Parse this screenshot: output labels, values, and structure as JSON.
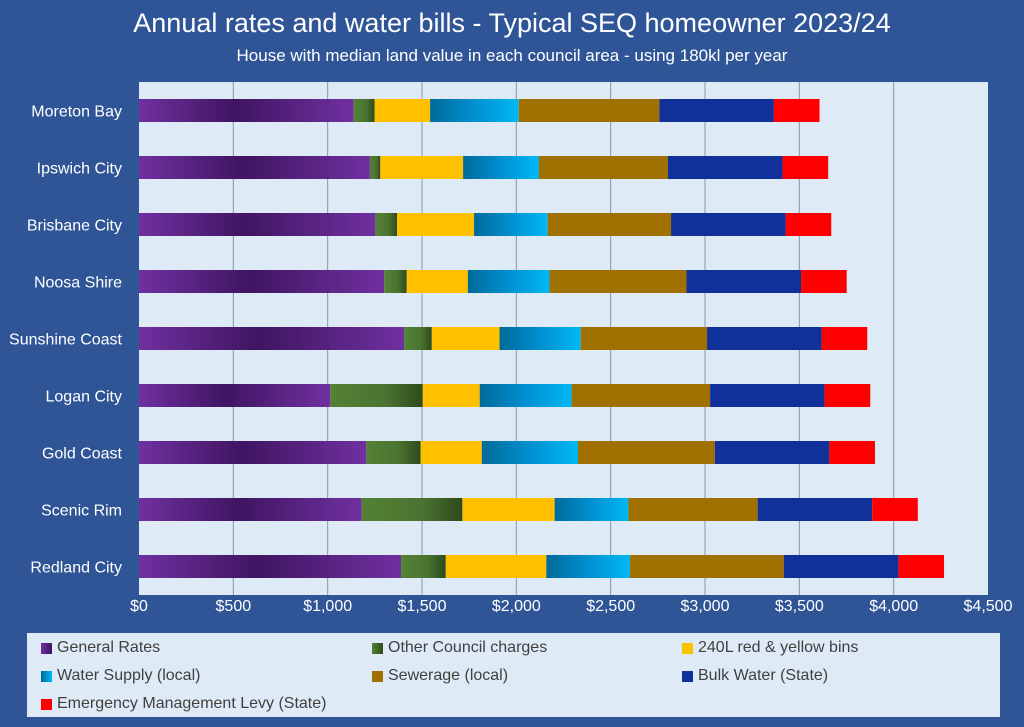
{
  "chart_data": {
    "type": "bar",
    "orientation": "horizontal",
    "stacked": true,
    "title": "Annual rates and water bills - Typical SEQ homeowner 2023/24",
    "subtitle": "House with median land value in each council area - using 180kl per year",
    "xlabel": "",
    "ylabel": "",
    "xlim": [
      0,
      4500
    ],
    "x_ticks": [
      "$0",
      "$500",
      "$1,000",
      "$1,500",
      "$2,000",
      "$2,500",
      "$3,000",
      "$3,500",
      "$4,000",
      "$4,500"
    ],
    "x_tick_values": [
      0,
      500,
      1000,
      1500,
      2000,
      2500,
      3000,
      3500,
      4000,
      4500
    ],
    "grid": "vertical",
    "legend_position": "bottom",
    "categories": [
      "Moreton Bay",
      "Ipswich City",
      "Brisbane City",
      "Noosa Shire",
      "Sunshine Coast",
      "Logan City",
      "Gold Coast",
      "Scenic Rim",
      "Redland City"
    ],
    "series": [
      {
        "name": "General Rates",
        "color": "#7030A0",
        "values": [
          1138,
          1224,
          1253,
          1300,
          1405,
          1014,
          1205,
          1180,
          1389
        ]
      },
      {
        "name": "Other Council charges",
        "color": "#548235",
        "values": [
          111,
          55,
          115,
          119,
          147,
          490,
          288,
          534,
          237
        ]
      },
      {
        "name": "240L red & yellow bins",
        "color": "#FFC000",
        "values": [
          294,
          439,
          408,
          324,
          359,
          302,
          324,
          489,
          533
        ]
      },
      {
        "name": "Water Supply (local)",
        "color": "#00B0F0",
        "values": [
          470,
          402,
          390,
          433,
          430,
          487,
          510,
          391,
          443
        ]
      },
      {
        "name": "Sewerage (local)",
        "color": "#A07000",
        "values": [
          745,
          684,
          654,
          726,
          670,
          734,
          725,
          685,
          816
        ]
      },
      {
        "name": "Bulk Water (State)",
        "color": "#10319A",
        "values": [
          607,
          607,
          607,
          607,
          607,
          607,
          607,
          607,
          607
        ]
      },
      {
        "name": "Emergency Management Levy (State)",
        "color": "#FF0000",
        "values": [
          242,
          242,
          242,
          242,
          242,
          242,
          242,
          242,
          242
        ]
      }
    ]
  }
}
